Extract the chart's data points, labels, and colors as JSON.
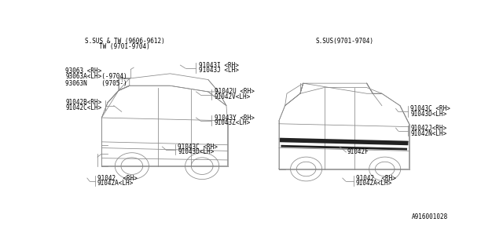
{
  "bg_color": "#ffffff",
  "line_color": "#888888",
  "text_color": "#000000",
  "title_left_line1": "S.SUS & TW (9606-9612)",
  "title_left_line2": "TW (9701-9704)",
  "title_right": "S.SUS(9701-9704)",
  "footer": "A916001028",
  "font_size": 5.5,
  "lw": 0.55
}
